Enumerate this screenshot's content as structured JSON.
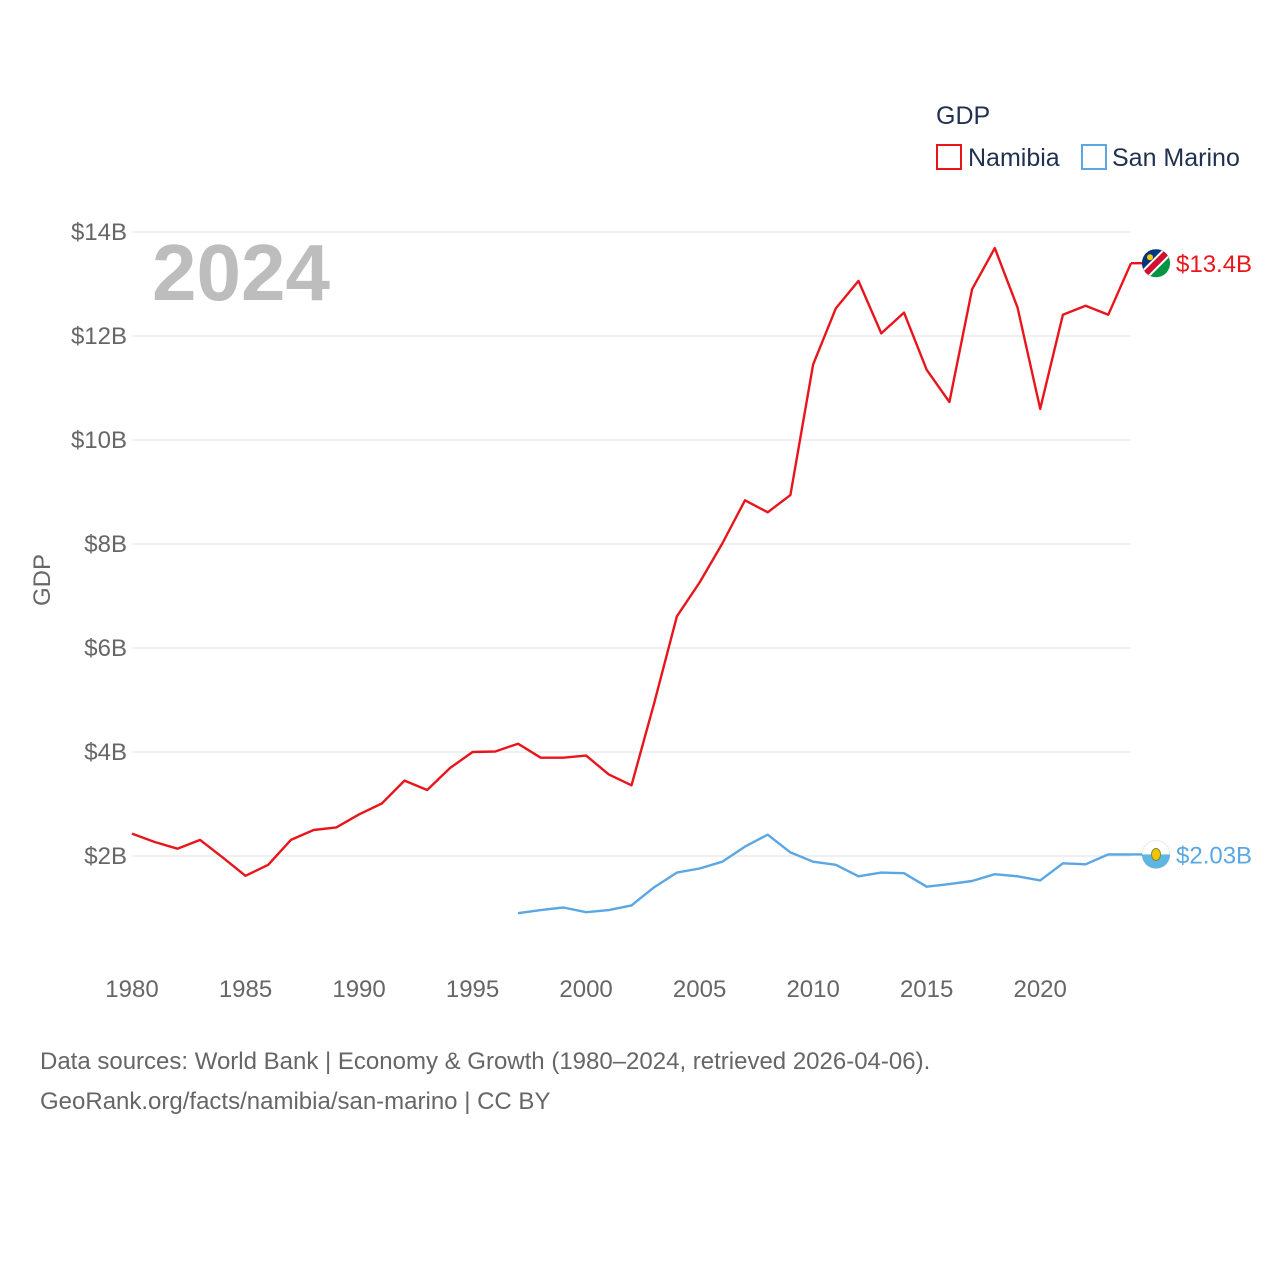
{
  "chart_data": {
    "type": "line",
    "year_label": "2024",
    "ylabel": "GDP",
    "xlim": [
      1980,
      2024
    ],
    "ylim": [
      0,
      14
    ],
    "x_ticks": [
      1980,
      1985,
      1990,
      1995,
      2000,
      2005,
      2010,
      2015,
      2020
    ],
    "x_tick_labels": [
      "1980",
      "1985",
      "1990",
      "1995",
      "2000",
      "2005",
      "2010",
      "2015",
      "2020"
    ],
    "y_ticks": [
      2,
      4,
      6,
      8,
      10,
      12,
      14
    ],
    "y_tick_labels": [
      "$2B",
      "$4B",
      "$6B",
      "$8B",
      "$10B",
      "$12B",
      "$14B"
    ],
    "legend_title": "GDP",
    "series": [
      {
        "name": "Namibia",
        "color": "#e8161c",
        "end_label": "$13.4B",
        "flag": "namibia-flag-icon",
        "x": [
          1980,
          1981,
          1982,
          1983,
          1984,
          1985,
          1986,
          1987,
          1988,
          1989,
          1990,
          1991,
          1992,
          1993,
          1994,
          1995,
          1996,
          1997,
          1998,
          1999,
          2000,
          2001,
          2002,
          2003,
          2004,
          2005,
          2006,
          2007,
          2008,
          2009,
          2010,
          2011,
          2012,
          2013,
          2014,
          2015,
          2016,
          2017,
          2018,
          2019,
          2020,
          2021,
          2022,
          2023,
          2024
        ],
        "values": [
          2.43,
          2.27,
          2.14,
          2.31,
          1.97,
          1.62,
          1.83,
          2.31,
          2.5,
          2.55,
          2.8,
          3.01,
          3.45,
          3.27,
          3.69,
          4.0,
          4.01,
          4.16,
          3.89,
          3.89,
          3.93,
          3.57,
          3.36,
          4.94,
          6.61,
          7.26,
          8.01,
          8.84,
          8.61,
          8.94,
          11.45,
          12.53,
          13.06,
          12.05,
          12.45,
          11.35,
          10.73,
          12.9,
          13.69,
          12.55,
          10.6,
          12.41,
          12.58,
          12.41,
          13.4
        ]
      },
      {
        "name": "San Marino",
        "color": "#5ba7e3",
        "end_label": "$2.03B",
        "flag": "san-marino-flag-icon",
        "x": [
          1997,
          1998,
          1999,
          2000,
          2001,
          2002,
          2003,
          2004,
          2005,
          2006,
          2007,
          2008,
          2009,
          2010,
          2011,
          2012,
          2013,
          2014,
          2015,
          2016,
          2017,
          2018,
          2019,
          2020,
          2021,
          2022,
          2023,
          2024
        ],
        "values": [
          0.9,
          0.96,
          1.01,
          0.92,
          0.96,
          1.05,
          1.4,
          1.68,
          1.76,
          1.89,
          2.18,
          2.41,
          2.07,
          1.89,
          1.83,
          1.61,
          1.68,
          1.67,
          1.41,
          1.46,
          1.52,
          1.65,
          1.61,
          1.53,
          1.86,
          1.84,
          2.03,
          2.03
        ]
      }
    ]
  },
  "footer": {
    "line1": "Data sources: World Bank | Economy & Growth (1980–2024, retrieved 2026-04-06).",
    "line2": "GeoRank.org/facts/namibia/san-marino | CC BY"
  }
}
